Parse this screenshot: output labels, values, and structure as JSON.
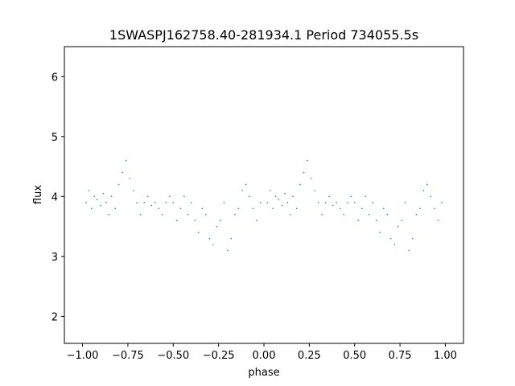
{
  "chart_data": {
    "type": "scatter",
    "title": "1SWASPJ162758.40-281934.1 Period 734055.5s",
    "xlabel": "phase",
    "ylabel": "flux",
    "xlim": [
      -1.1,
      1.1
    ],
    "ylim": [
      1.55,
      6.5
    ],
    "xticks": [
      -1.0,
      -0.75,
      -0.5,
      -0.25,
      0.0,
      0.25,
      0.5,
      0.75,
      1.0
    ],
    "xtick_labels": [
      "−1.00",
      "−0.75",
      "−0.50",
      "−0.25",
      "0.00",
      "0.25",
      "0.50",
      "0.75",
      "1.00"
    ],
    "yticks": [
      2,
      3,
      4,
      5,
      6
    ],
    "ytick_labels": [
      "2",
      "3",
      "4",
      "5",
      "6"
    ],
    "grid": false,
    "legend": "none",
    "marker_color": "#1f77b4",
    "series": [
      {
        "x": [
          -0.98,
          -0.965,
          -0.95,
          -0.935,
          -0.92,
          -0.9,
          -0.885,
          -0.87,
          -0.855,
          -0.84,
          -0.82,
          -0.8,
          -0.78,
          -0.76,
          -0.74,
          -0.72,
          -0.7,
          -0.68,
          -0.66,
          -0.64,
          -0.62,
          -0.6,
          -0.58,
          -0.56,
          -0.54,
          -0.52,
          -0.5,
          -0.48,
          -0.46,
          -0.44,
          -0.42,
          -0.4,
          -0.38,
          -0.36,
          -0.34,
          -0.32,
          -0.3,
          -0.28,
          -0.26,
          -0.24,
          -0.22,
          -0.2,
          -0.18,
          -0.16,
          -0.14,
          -0.12,
          -0.1,
          -0.08,
          -0.06,
          -0.04,
          -0.02,
          0.02,
          0.035,
          0.05,
          0.065,
          0.08,
          0.1,
          0.115,
          0.13,
          0.145,
          0.16,
          0.18,
          0.2,
          0.22,
          0.24,
          0.26,
          0.28,
          0.3,
          0.32,
          0.34,
          0.36,
          0.38,
          0.4,
          0.42,
          0.44,
          0.46,
          0.48,
          0.5,
          0.52,
          0.54,
          0.56,
          0.58,
          0.6,
          0.62,
          0.64,
          0.66,
          0.68,
          0.7,
          0.72,
          0.74,
          0.76,
          0.78,
          0.8,
          0.82,
          0.84,
          0.86,
          0.88,
          0.9,
          0.92,
          0.94,
          0.96,
          0.98
        ],
        "y": [
          3.9,
          4.1,
          3.8,
          4.0,
          3.95,
          3.85,
          4.05,
          3.9,
          3.7,
          4.0,
          3.8,
          4.2,
          4.4,
          4.6,
          4.3,
          4.1,
          3.9,
          3.7,
          3.9,
          4.0,
          3.85,
          3.9,
          3.8,
          3.7,
          3.9,
          4.0,
          3.9,
          3.6,
          3.8,
          4.0,
          3.7,
          3.9,
          3.6,
          3.4,
          3.8,
          3.7,
          3.3,
          3.2,
          3.5,
          3.6,
          3.9,
          3.1,
          3.3,
          3.7,
          3.8,
          4.1,
          4.2,
          4.0,
          3.8,
          3.6,
          3.9,
          3.9,
          4.1,
          3.8,
          4.0,
          3.95,
          3.85,
          4.05,
          3.9,
          3.7,
          4.0,
          3.8,
          4.2,
          4.4,
          4.6,
          4.3,
          4.1,
          3.9,
          3.7,
          3.9,
          4.0,
          3.85,
          3.9,
          3.8,
          3.7,
          3.9,
          4.0,
          3.9,
          3.6,
          3.8,
          4.0,
          3.7,
          3.9,
          3.6,
          3.4,
          3.8,
          3.7,
          3.3,
          3.2,
          3.5,
          3.6,
          3.9,
          3.1,
          3.3,
          3.7,
          3.8,
          4.1,
          4.2,
          4.0,
          3.8,
          3.6,
          3.9
        ]
      }
    ]
  }
}
